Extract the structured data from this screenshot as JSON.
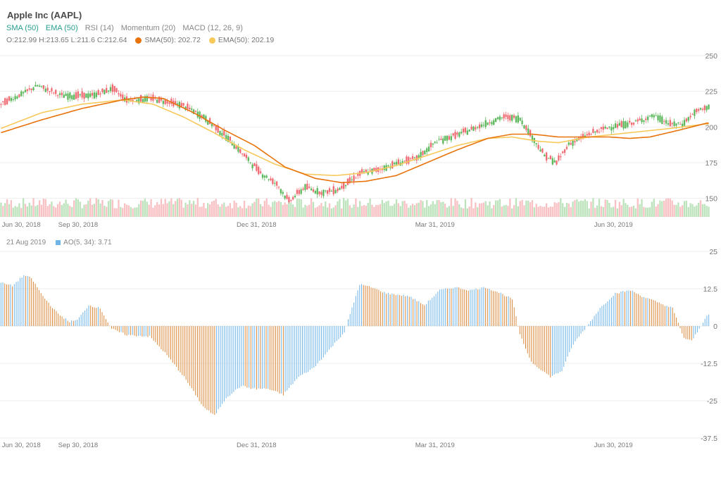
{
  "title": "Apple Inc (AAPL)",
  "toolbar": [
    {
      "label": "SMA (50)",
      "active": true
    },
    {
      "label": "EMA (50)",
      "active": true
    },
    {
      "label": "RSI (14)",
      "active": false
    },
    {
      "label": "Momentum (20)",
      "active": false
    },
    {
      "label": "MACD (12, 26, 9)",
      "active": false
    }
  ],
  "ohlc_text": "O:212.99 H:213.65 L:211.6 C:212.64",
  "sma_legend": "SMA(50): 202.72",
  "ema_legend": "EMA(50): 202.19",
  "ao_date": "21 Aug 2019",
  "ao_legend": "AO(5, 34): 3.71",
  "colors": {
    "up": "#5cb85c",
    "down": "#ef6b73",
    "sma": "#e8730c",
    "ema": "#f7c95b",
    "ao_up": "#6fb4e6",
    "ao_down": "#d9883a",
    "vol_up": "#bde3bd",
    "vol_down": "#f8c1c4"
  },
  "chart_data": [
    {
      "type": "candlestick",
      "ylim": [
        137,
        250
      ],
      "yticks": [
        "150",
        "175",
        "200",
        "225",
        "250"
      ],
      "xticks": [
        "Jun 30, 2018",
        "Sep 30, 2018",
        "Dec 31, 2018",
        "Mar 31, 2019",
        "Jun 30, 2019"
      ],
      "close_keypoints": [
        [
          0,
          216
        ],
        [
          10,
          223
        ],
        [
          18,
          229
        ],
        [
          30,
          222
        ],
        [
          45,
          222
        ],
        [
          55,
          227
        ],
        [
          62,
          219
        ],
        [
          75,
          220
        ],
        [
          90,
          215
        ],
        [
          100,
          207
        ],
        [
          112,
          192
        ],
        [
          120,
          180
        ],
        [
          128,
          168
        ],
        [
          136,
          160
        ],
        [
          142,
          148
        ],
        [
          150,
          158
        ],
        [
          158,
          154
        ],
        [
          166,
          156
        ],
        [
          172,
          162
        ],
        [
          178,
          168
        ],
        [
          186,
          170
        ],
        [
          196,
          175
        ],
        [
          205,
          178
        ],
        [
          215,
          190
        ],
        [
          226,
          195
        ],
        [
          240,
          203
        ],
        [
          248,
          207
        ],
        [
          256,
          206
        ],
        [
          262,
          193
        ],
        [
          268,
          180
        ],
        [
          274,
          175
        ],
        [
          280,
          188
        ],
        [
          290,
          195
        ],
        [
          300,
          200
        ],
        [
          312,
          203
        ],
        [
          322,
          208
        ],
        [
          330,
          202
        ],
        [
          336,
          202
        ],
        [
          342,
          210
        ],
        [
          348,
          214
        ]
      ],
      "sma_keypoints": [
        [
          0,
          196
        ],
        [
          20,
          205
        ],
        [
          40,
          213
        ],
        [
          60,
          219
        ],
        [
          70,
          221
        ],
        [
          80,
          220
        ],
        [
          95,
          210
        ],
        [
          110,
          198
        ],
        [
          125,
          187
        ],
        [
          140,
          172
        ],
        [
          155,
          164
        ],
        [
          168,
          161
        ],
        [
          180,
          162
        ],
        [
          195,
          166
        ],
        [
          210,
          175
        ],
        [
          225,
          184
        ],
        [
          240,
          192
        ],
        [
          252,
          195
        ],
        [
          262,
          195
        ],
        [
          275,
          193
        ],
        [
          290,
          193
        ],
        [
          300,
          193
        ],
        [
          310,
          192
        ],
        [
          320,
          193
        ],
        [
          335,
          198
        ],
        [
          348,
          202.72
        ]
      ],
      "ema_keypoints": [
        [
          0,
          199
        ],
        [
          20,
          210
        ],
        [
          40,
          216
        ],
        [
          60,
          219
        ],
        [
          75,
          216
        ],
        [
          90,
          207
        ],
        [
          105,
          196
        ],
        [
          120,
          184
        ],
        [
          135,
          174
        ],
        [
          150,
          167
        ],
        [
          165,
          166
        ],
        [
          180,
          168
        ],
        [
          195,
          173
        ],
        [
          210,
          180
        ],
        [
          225,
          187
        ],
        [
          240,
          192
        ],
        [
          252,
          193
        ],
        [
          265,
          190
        ],
        [
          275,
          189
        ],
        [
          290,
          193
        ],
        [
          310,
          196
        ],
        [
          330,
          199
        ],
        [
          348,
          202.19
        ]
      ],
      "volume_range": [
        0.2,
        0.45
      ]
    },
    {
      "type": "bar",
      "name": "AO(5, 34)",
      "ylim": [
        -37.5,
        25
      ],
      "yticks": [
        "25",
        "12.5",
        "0",
        "-12.5",
        "-25",
        "-37.5"
      ],
      "xticks": [
        "Jun 30, 2018",
        "Sep 30, 2018",
        "Dec 31, 2018",
        "Mar 31, 2019",
        "Jun 30, 2019"
      ],
      "keypoints": [
        [
          0,
          14.5
        ],
        [
          6,
          13.5
        ],
        [
          12,
          17
        ],
        [
          16,
          16
        ],
        [
          22,
          10
        ],
        [
          30,
          4
        ],
        [
          36,
          1.5
        ],
        [
          40,
          2
        ],
        [
          46,
          7
        ],
        [
          52,
          6
        ],
        [
          58,
          -1
        ],
        [
          66,
          -3
        ],
        [
          78,
          -3.5
        ],
        [
          86,
          -9
        ],
        [
          96,
          -17
        ],
        [
          106,
          -27
        ],
        [
          112,
          -30
        ],
        [
          118,
          -24
        ],
        [
          126,
          -20
        ],
        [
          132,
          -21
        ],
        [
          140,
          -21
        ],
        [
          148,
          -23
        ],
        [
          156,
          -17
        ],
        [
          164,
          -14
        ],
        [
          172,
          -8
        ],
        [
          180,
          -2
        ],
        [
          188,
          14
        ],
        [
          194,
          13
        ],
        [
          202,
          11
        ],
        [
          214,
          10
        ],
        [
          222,
          7
        ],
        [
          230,
          12
        ],
        [
          238,
          13
        ],
        [
          246,
          12
        ],
        [
          254,
          13
        ],
        [
          262,
          11
        ],
        [
          268,
          9
        ],
        [
          272,
          -3
        ],
        [
          278,
          -12
        ],
        [
          288,
          -17
        ],
        [
          294,
          -15
        ],
        [
          300,
          -6
        ],
        [
          306,
          -1
        ],
        [
          314,
          6
        ],
        [
          322,
          11
        ],
        [
          330,
          12
        ],
        [
          336,
          10
        ],
        [
          344,
          8
        ],
        [
          352,
          6
        ],
        [
          358,
          -4
        ],
        [
          362,
          -5
        ],
        [
          366,
          -1
        ],
        [
          370,
          3.71
        ]
      ]
    }
  ]
}
